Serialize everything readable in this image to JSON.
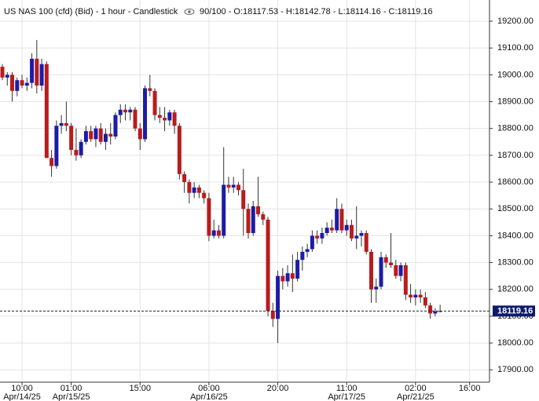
{
  "chart_data": {
    "type": "candlestick",
    "title": "US NAS 100 (cfd) (Bid) - 1 hour - Candlestick",
    "info": "90/100 - O:18117.53 - H:18142.78 - L:18114.16 - C:18119.16",
    "up_color": "#1c1ca6",
    "down_color": "#b81c1c",
    "grid": true,
    "ylim": [
      17854,
      19279
    ],
    "yticks": [
      {
        "value": 17900,
        "label": "17900.00"
      },
      {
        "value": 18000,
        "label": "18000.00"
      },
      {
        "value": 18100,
        "label": "18100.00"
      },
      {
        "value": 18200,
        "label": "18200.00"
      },
      {
        "value": 18300,
        "label": "18300.00"
      },
      {
        "value": 18400,
        "label": "18400.00"
      },
      {
        "value": 18500,
        "label": "18500.00"
      },
      {
        "value": 18600,
        "label": "18600.00"
      },
      {
        "value": 18700,
        "label": "18700.00"
      },
      {
        "value": 18800,
        "label": "18800.00"
      },
      {
        "value": 18900,
        "label": "18900.00"
      },
      {
        "value": 19000,
        "label": "19000.00"
      },
      {
        "value": 19100,
        "label": "19100.00"
      },
      {
        "value": 19200,
        "label": "19200.00"
      }
    ],
    "last_price": 18119.16,
    "categories": [
      null,
      null,
      null,
      null,
      "10:00",
      null,
      null,
      null,
      null,
      null,
      null,
      null,
      null,
      null,
      "01:00",
      null,
      null,
      null,
      null,
      null,
      null,
      null,
      null,
      null,
      null,
      null,
      null,
      null,
      "15:00",
      null,
      null,
      null,
      null,
      null,
      null,
      null,
      null,
      null,
      null,
      null,
      null,
      null,
      "06:00",
      null,
      null,
      null,
      null,
      null,
      null,
      null,
      null,
      null,
      null,
      null,
      null,
      null,
      "20:00",
      null,
      null,
      null,
      null,
      null,
      null,
      null,
      null,
      null,
      null,
      null,
      null,
      null,
      "11:00",
      null,
      null,
      null,
      null,
      null,
      null,
      null,
      null,
      null,
      null,
      null,
      null,
      null,
      "02:00",
      null,
      null,
      null,
      null,
      null,
      null,
      null,
      null,
      null,
      null,
      "16:00"
    ],
    "x_dates": [
      null,
      null,
      null,
      null,
      "Apr/14/25",
      null,
      null,
      null,
      null,
      null,
      null,
      null,
      null,
      null,
      "Apr/15/25",
      null,
      null,
      null,
      null,
      null,
      null,
      null,
      null,
      null,
      null,
      null,
      null,
      null,
      null,
      null,
      null,
      null,
      null,
      null,
      null,
      null,
      null,
      null,
      null,
      null,
      null,
      null,
      "Apr/16/25",
      null,
      null,
      null,
      null,
      null,
      null,
      null,
      null,
      null,
      null,
      null,
      null,
      null,
      null,
      null,
      null,
      null,
      null,
      null,
      null,
      null,
      null,
      null,
      null,
      null,
      null,
      null,
      "Apr/17/25",
      null,
      null,
      null,
      null,
      null,
      null,
      null,
      null,
      null,
      null,
      null,
      null,
      null,
      "Apr/21/25",
      null,
      null,
      null,
      null,
      null,
      null,
      null,
      null,
      null,
      null,
      null
    ],
    "candles": [
      [
        19030,
        19040,
        18980,
        18990
      ],
      [
        18990,
        19010,
        18960,
        19000
      ],
      [
        19000,
        19010,
        18900,
        18940
      ],
      [
        18940,
        18990,
        18920,
        18980
      ],
      [
        18980,
        19000,
        18950,
        18960
      ],
      [
        18960,
        18990,
        18940,
        18970
      ],
      [
        18970,
        19080,
        18950,
        19060
      ],
      [
        19060,
        19130,
        18930,
        18960
      ],
      [
        18960,
        19060,
        18940,
        19040
      ],
      [
        19040,
        19050,
        18700,
        18690
      ],
      [
        18690,
        18720,
        18620,
        18660
      ],
      [
        18660,
        18830,
        18650,
        18810
      ],
      [
        18810,
        18850,
        18780,
        18820
      ],
      [
        18820,
        18900,
        18790,
        18810
      ],
      [
        18810,
        18820,
        18700,
        18720
      ],
      [
        18720,
        18800,
        18680,
        18700
      ],
      [
        18700,
        18760,
        18690,
        18750
      ],
      [
        18750,
        18810,
        18740,
        18790
      ],
      [
        18790,
        18810,
        18750,
        18760
      ],
      [
        18760,
        18810,
        18730,
        18800
      ],
      [
        18800,
        18820,
        18740,
        18750
      ],
      [
        18750,
        18800,
        18720,
        18780
      ],
      [
        18780,
        18820,
        18740,
        18770
      ],
      [
        18770,
        18860,
        18760,
        18850
      ],
      [
        18850,
        18890,
        18820,
        18870
      ],
      [
        18870,
        18890,
        18830,
        18860
      ],
      [
        18860,
        18880,
        18830,
        18870
      ],
      [
        18870,
        18880,
        18790,
        18800
      ],
      [
        18800,
        18820,
        18720,
        18760
      ],
      [
        18760,
        18960,
        18750,
        18950
      ],
      [
        18950,
        19000,
        18920,
        18940
      ],
      [
        18940,
        18950,
        18830,
        18850
      ],
      [
        18850,
        18880,
        18820,
        18840
      ],
      [
        18840,
        18880,
        18790,
        18830
      ],
      [
        18830,
        18870,
        18810,
        18860
      ],
      [
        18860,
        18870,
        18780,
        18810
      ],
      [
        18810,
        18820,
        18610,
        18630
      ],
      [
        18630,
        18640,
        18560,
        18600
      ],
      [
        18600,
        18610,
        18520,
        18560
      ],
      [
        18560,
        18600,
        18540,
        18580
      ],
      [
        18580,
        18590,
        18540,
        18560
      ],
      [
        18560,
        18570,
        18520,
        18540
      ],
      [
        18540,
        18560,
        18380,
        18400
      ],
      [
        18400,
        18460,
        18390,
        18420
      ],
      [
        18420,
        18440,
        18390,
        18400
      ],
      [
        18400,
        18730,
        18390,
        18590
      ],
      [
        18590,
        18620,
        18560,
        18580
      ],
      [
        18580,
        18620,
        18560,
        18590
      ],
      [
        18590,
        18600,
        18550,
        18570
      ],
      [
        18570,
        18650,
        18400,
        18500
      ],
      [
        18500,
        18520,
        18390,
        18410
      ],
      [
        18410,
        18530,
        18400,
        18510
      ],
      [
        18510,
        18620,
        18470,
        18480
      ],
      [
        18480,
        18490,
        18440,
        18460
      ],
      [
        18460,
        18470,
        18100,
        18120
      ],
      [
        18120,
        18150,
        18060,
        18090
      ],
      [
        18090,
        18270,
        18000,
        18250
      ],
      [
        18250,
        18280,
        18200,
        18230
      ],
      [
        18230,
        18290,
        18210,
        18260
      ],
      [
        18260,
        18330,
        18190,
        18240
      ],
      [
        18240,
        18340,
        18230,
        18310
      ],
      [
        18310,
        18360,
        18270,
        18340
      ],
      [
        18340,
        18370,
        18320,
        18350
      ],
      [
        18350,
        18420,
        18340,
        18400
      ],
      [
        18400,
        18420,
        18370,
        18390
      ],
      [
        18390,
        18430,
        18370,
        18410
      ],
      [
        18410,
        18450,
        18400,
        18430
      ],
      [
        18430,
        18460,
        18410,
        18420
      ],
      [
        18420,
        18540,
        18410,
        18500
      ],
      [
        18500,
        18520,
        18410,
        18420
      ],
      [
        18420,
        18460,
        18400,
        18440
      ],
      [
        18440,
        18460,
        18380,
        18390
      ],
      [
        18390,
        18510,
        18350,
        18400
      ],
      [
        18400,
        18420,
        18360,
        18410
      ],
      [
        18410,
        18420,
        18330,
        18340
      ],
      [
        18340,
        18350,
        18150,
        18200
      ],
      [
        18200,
        18240,
        18150,
        18210
      ],
      [
        18210,
        18340,
        18200,
        18320
      ],
      [
        18320,
        18330,
        18280,
        18300
      ],
      [
        18300,
        18410,
        18280,
        18290
      ],
      [
        18290,
        18310,
        18240,
        18250
      ],
      [
        18250,
        18300,
        18230,
        18290
      ],
      [
        18290,
        18300,
        18160,
        18180
      ],
      [
        18180,
        18220,
        18150,
        18170
      ],
      [
        18170,
        18200,
        18140,
        18180
      ],
      [
        18180,
        18200,
        18150,
        18170
      ],
      [
        18170,
        18190,
        18130,
        18140
      ],
      [
        18140,
        18150,
        18090,
        18110
      ],
      [
        18110,
        18130,
        18100,
        18117.53
      ],
      [
        18117.53,
        18142.78,
        18114.16,
        18119.16
      ],
      null,
      null,
      null,
      null,
      null,
      null
    ]
  }
}
